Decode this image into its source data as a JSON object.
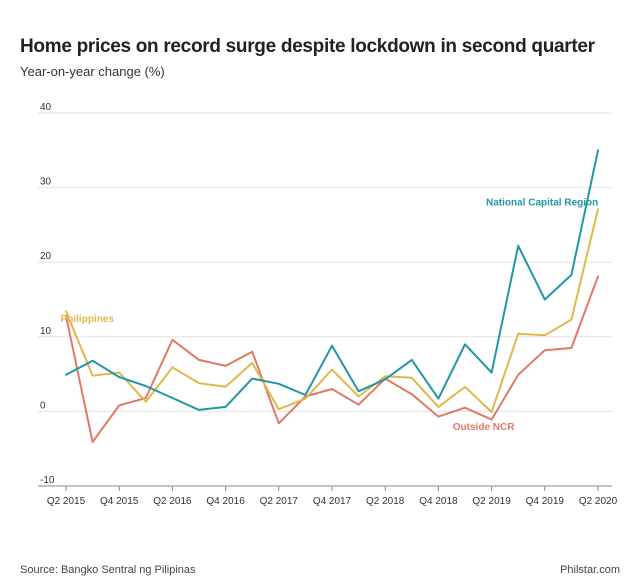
{
  "header": {
    "title": "Home prices on record surge despite lockdown in second quarter",
    "subtitle": "Year-on-year change (%)"
  },
  "footer": {
    "source": "Source: Bangko Sentral ng Pilipinas",
    "credit": "Philstar.com"
  },
  "chart_data": {
    "type": "line",
    "title": "Home prices on record surge despite lockdown in second quarter",
    "ylabel": "Year-on-year change (%)",
    "xlabel": "",
    "ylim": [
      -10,
      40
    ],
    "yticks": [
      -10,
      0,
      10,
      20,
      30,
      40
    ],
    "grid": true,
    "categories": [
      "Q2 2015",
      "Q3 2015",
      "Q4 2015",
      "Q1 2016",
      "Q2 2016",
      "Q3 2016",
      "Q4 2016",
      "Q1 2017",
      "Q2 2017",
      "Q3 2017",
      "Q4 2017",
      "Q1 2018",
      "Q2 2018",
      "Q3 2018",
      "Q4 2018",
      "Q1 2019",
      "Q2 2019",
      "Q3 2019",
      "Q4 2019",
      "Q1 2020",
      "Q2 2020"
    ],
    "xtick_labels": [
      "Q2 2015",
      "",
      "Q4 2015",
      "",
      "Q2 2016",
      "",
      "Q4 2016",
      "",
      "Q2 2017",
      "",
      "Q4 2017",
      "",
      "Q2 2018",
      "",
      "Q4 2018",
      "",
      "Q2 2019",
      "",
      "Q4 2019",
      "",
      "Q2 2020"
    ],
    "series": [
      {
        "name": "National Capital Region",
        "color": "#2196a8",
        "values": [
          4.9,
          6.8,
          4.6,
          3.4,
          1.8,
          0.2,
          0.6,
          4.4,
          3.7,
          2.2,
          8.8,
          2.7,
          4.3,
          6.9,
          1.7,
          9.0,
          5.2,
          22.2,
          15.0,
          18.3,
          35.0
        ]
      },
      {
        "name": "Philippines",
        "color": "#e0b84a",
        "values": [
          13.4,
          4.8,
          5.2,
          1.3,
          5.9,
          3.8,
          3.3,
          6.5,
          0.3,
          1.7,
          5.6,
          2.0,
          4.7,
          4.5,
          0.6,
          3.3,
          -0.1,
          10.4,
          10.2,
          12.3,
          27.1
        ]
      },
      {
        "name": "Outside NCR",
        "color": "#e07a66",
        "values": [
          12.8,
          -4.1,
          0.8,
          1.8,
          9.6,
          6.9,
          6.1,
          8.0,
          -1.6,
          2.0,
          3.0,
          0.9,
          4.4,
          2.3,
          -0.7,
          0.5,
          -1.1,
          4.9,
          8.2,
          8.5,
          18.1
        ]
      }
    ]
  }
}
